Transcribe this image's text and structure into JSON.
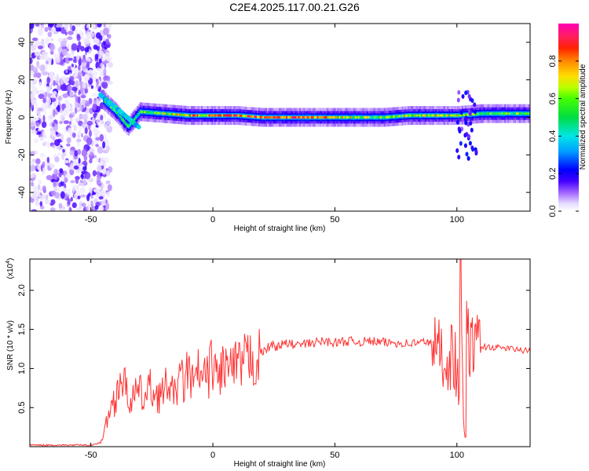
{
  "title": "C2E4.2025.117.00.21.G26",
  "chart_data": [
    {
      "type": "heatmap",
      "xlabel": "Height of straight line (km)",
      "ylabel": "Frequency (Hz)",
      "xlim": [
        -75,
        130
      ],
      "ylim": [
        -50,
        50
      ],
      "x_ticks": [
        -50,
        0,
        50,
        100
      ],
      "y_ticks": [
        -40,
        -20,
        0,
        20,
        40
      ],
      "colorbar": {
        "label": "Normalized spectral amplitude",
        "range": [
          0.0,
          1.0
        ],
        "ticks": [
          0.0,
          0.2,
          0.4,
          0.6,
          0.8
        ],
        "tick_labels": [
          "0.0",
          "0.2",
          "0.4",
          "0.6",
          "0.8"
        ],
        "colors": [
          "#ffffff",
          "#c8b4ff",
          "#8a3cff",
          "#2a00ff",
          "#0000ff",
          "#00aaff",
          "#00e6e6",
          "#00dd44",
          "#33ff00",
          "#aaff00",
          "#ffdd00",
          "#ff8800",
          "#ff2200",
          "#ff1f5e",
          "#ff00b4"
        ]
      },
      "ridge": [
        {
          "x": -45,
          "f": 9,
          "amp": 0.45
        },
        {
          "x": -40,
          "f": 3,
          "amp": 0.5
        },
        {
          "x": -35,
          "f": -5,
          "amp": 0.55
        },
        {
          "x": -30,
          "f": 3,
          "amp": 0.55
        },
        {
          "x": -20,
          "f": 2,
          "amp": 0.6
        },
        {
          "x": -10,
          "f": 1,
          "amp": 0.75
        },
        {
          "x": 0,
          "f": 1,
          "amp": 0.75
        },
        {
          "x": 10,
          "f": 1,
          "amp": 0.8
        },
        {
          "x": 20,
          "f": 0,
          "amp": 0.85
        },
        {
          "x": 30,
          "f": 0,
          "amp": 0.85
        },
        {
          "x": 40,
          "f": 0,
          "amp": 0.8
        },
        {
          "x": 50,
          "f": 0,
          "amp": 0.75
        },
        {
          "x": 60,
          "f": 0,
          "amp": 0.6
        },
        {
          "x": 70,
          "f": 0,
          "amp": 0.55
        },
        {
          "x": 80,
          "f": 1,
          "amp": 0.6
        },
        {
          "x": 90,
          "f": 1,
          "amp": 0.7
        },
        {
          "x": 100,
          "f": 1,
          "amp": 0.65
        },
        {
          "x": 110,
          "f": 2,
          "amp": 0.55
        },
        {
          "x": 120,
          "f": 2,
          "amp": 0.55
        },
        {
          "x": 130,
          "f": 2,
          "amp": 0.55
        }
      ]
    },
    {
      "type": "line",
      "xlabel": "Height of straight line (km)",
      "ylabel": "SNR (10 * v/v)",
      "y_multiplier": "(x10",
      "y_multiplier_exp": "4",
      "y_multiplier_close": ")",
      "xlim": [
        -75,
        130
      ],
      "ylim": [
        0,
        2.4
      ],
      "x_ticks": [
        -50,
        0,
        50,
        100
      ],
      "y_ticks": [
        0.5,
        1.0,
        1.5,
        2.0
      ],
      "y_tick_labels": [
        "0.5",
        "1.0",
        "1.5",
        "2.0"
      ],
      "color": "#ff3333",
      "series": [
        {
          "x": [
            -75,
            -60,
            -50,
            -46,
            -44,
            -42,
            -40,
            -38,
            -36,
            -34,
            -32,
            -30,
            -28,
            -26,
            -24,
            -22,
            -20,
            -18,
            -16,
            -14,
            -12,
            -10,
            -8,
            -6,
            -4,
            -2,
            0,
            2,
            4,
            6,
            8,
            10,
            12,
            14,
            16,
            18,
            20,
            22,
            24,
            26,
            28,
            30,
            35,
            40,
            45,
            50,
            55,
            60,
            65,
            70,
            75,
            80,
            85,
            88,
            90,
            92,
            94,
            96,
            98,
            100,
            101,
            102,
            103,
            104,
            105,
            106,
            107,
            108,
            110,
            115,
            120,
            125,
            130
          ],
          "y": [
            0.02,
            0.02,
            0.02,
            0.05,
            0.25,
            0.5,
            0.6,
            0.9,
            0.75,
            0.6,
            0.65,
            0.7,
            0.6,
            0.75,
            0.7,
            0.65,
            0.7,
            0.85,
            0.6,
            0.9,
            0.8,
            1.0,
            0.75,
            0.95,
            0.85,
            0.9,
            1.1,
            0.85,
            1.05,
            1.0,
            1.0,
            1.0,
            1.05,
            1.1,
            1.15,
            1.1,
            1.2,
            1.25,
            1.3,
            1.28,
            1.3,
            1.32,
            1.3,
            1.32,
            1.35,
            1.33,
            1.35,
            1.34,
            1.35,
            1.33,
            1.33,
            1.32,
            1.33,
            1.35,
            1.3,
            1.25,
            1.2,
            1.1,
            1.2,
            1.0,
            0.6,
            1.3,
            0.2,
            1.5,
            1.3,
            1.2,
            1.4,
            1.3,
            1.28,
            1.27,
            1.26,
            1.24,
            1.22
          ]
        }
      ]
    }
  ]
}
